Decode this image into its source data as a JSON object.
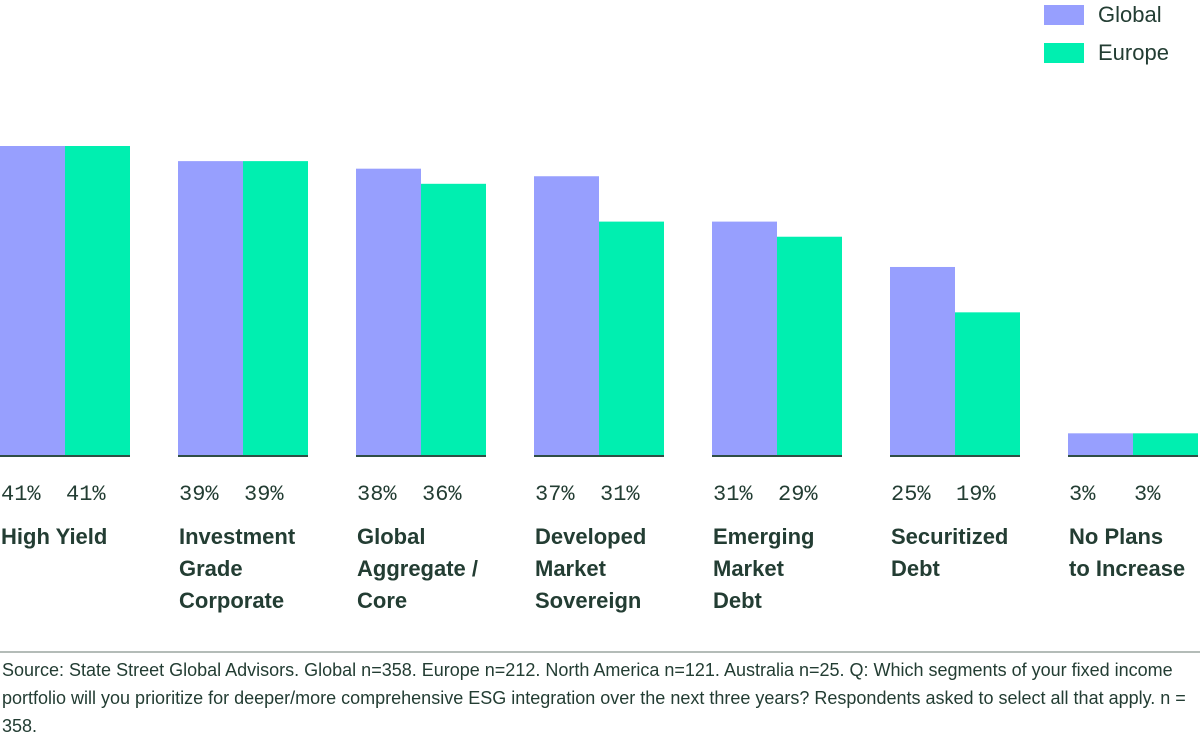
{
  "chart_data": {
    "type": "bar",
    "title": "",
    "xlabel": "",
    "ylabel": "",
    "ylim": [
      0,
      41
    ],
    "grid": false,
    "legend_position": "top-right",
    "categories": [
      [
        "High Yield"
      ],
      [
        "Investment",
        "Grade",
        "Corporate"
      ],
      [
        "Global",
        "Aggregate /",
        "Core"
      ],
      [
        "Developed",
        "Market",
        "Sovereign"
      ],
      [
        "Emerging",
        "Market",
        "Debt"
      ],
      [
        "Securitized",
        "Debt"
      ],
      [
        "No Plans",
        "to Increase"
      ]
    ],
    "series": [
      {
        "name": "Global",
        "color": "#979ffe",
        "values": [
          41,
          39,
          38,
          37,
          31,
          25,
          3
        ]
      },
      {
        "name": "Europe",
        "color": "#00efb0",
        "values": [
          41,
          39,
          36,
          31,
          29,
          19,
          3
        ]
      }
    ],
    "value_suffix": "%",
    "baseline_color": "#2f4f45"
  },
  "legend": [
    {
      "label": "Global",
      "color": "#979ffe"
    },
    {
      "label": "Europe",
      "color": "#00efb0"
    }
  ],
  "source": "Source: State Street Global Advisors. Global n=358. Europe n=212. North America n=121. Australia n=25. Q: Which segments of your fixed income portfolio will you prioritize for deeper/more comprehensive ESG integration over the next three years? Respondents asked to select all that apply. n = 358."
}
